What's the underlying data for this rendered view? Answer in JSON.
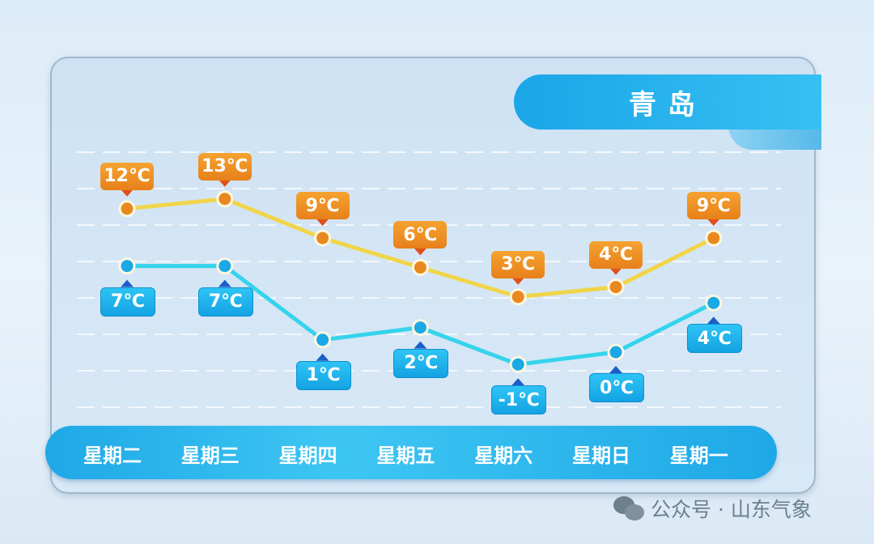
{
  "title": "青岛",
  "watermark": "公众号 · 山东气象",
  "colors": {
    "high": "#e8891f",
    "high_line": "#f0d54a",
    "low": "#1aa8e6",
    "low_line": "#35d3ec"
  },
  "chart_data": {
    "type": "line",
    "categories": [
      "星期二",
      "星期三",
      "星期四",
      "星期五",
      "星期六",
      "星期日",
      "星期一"
    ],
    "series": [
      {
        "values": [
          12,
          13,
          9,
          6,
          3,
          4,
          9
        ],
        "labels": [
          "12℃",
          "13℃",
          "9℃",
          "6℃",
          "3℃",
          "4℃",
          "9℃"
        ]
      },
      {
        "values": [
          7,
          7,
          1,
          2,
          -1,
          0,
          4
        ],
        "labels": [
          "7℃",
          "7℃",
          "1℃",
          "2℃",
          "-1℃",
          "0℃",
          "4℃"
        ]
      }
    ],
    "unit": "℃",
    "grid": true
  }
}
